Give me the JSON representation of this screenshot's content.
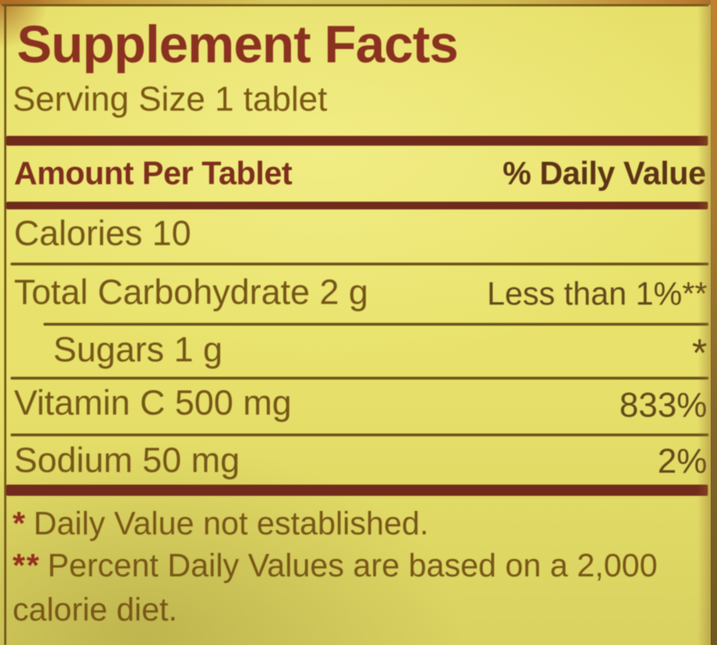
{
  "label": {
    "title": "Supplement Facts",
    "serving_size": "Serving Size 1 tablet",
    "header": {
      "amount": "Amount Per Tablet",
      "daily_value": "% Daily Value"
    },
    "rows": [
      {
        "name": "Calories 10",
        "value": ""
      },
      {
        "name": "Total Carbohydrate 2 g",
        "value": "Less than 1%**"
      },
      {
        "name": "Sugars 1 g",
        "value": "*",
        "indented": true
      },
      {
        "name": "Vitamin C 500 mg",
        "value": "833%"
      },
      {
        "name": "Sodium 50 mg",
        "value": "2%"
      }
    ],
    "footnotes": [
      {
        "marker": "*",
        "text": "Daily Value not established."
      },
      {
        "marker": "**",
        "text": "Percent Daily Values are based on a 2,000 calorie diet."
      }
    ],
    "colors": {
      "background_yellow": "#e8e26c",
      "title_maroon": "#8a3120",
      "bar_maroon": "#6f2a1b",
      "body_olive_brown": "#745617",
      "value_dark_brown": "#63481a",
      "footnote_marker_red": "#942f1f"
    }
  }
}
